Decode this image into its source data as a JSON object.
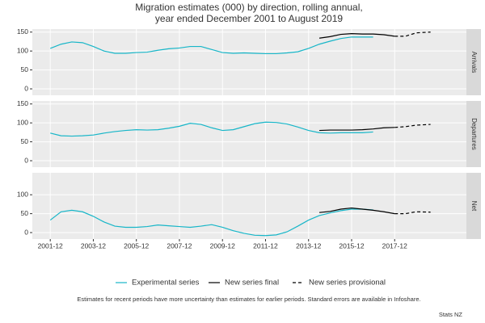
{
  "title": "Migration estimates (000) by direction, rolling annual,",
  "subtitle": "year ended December 2001 to August 2019",
  "caption": "Estimates for recent periods have more uncertainty than estimates for earlier periods. Standard errors are available in Infoshare.",
  "source": "Stats NZ",
  "chart_data": [
    {
      "type": "line",
      "panel": "Arrivals",
      "x": [
        "2001-12",
        "2002-06",
        "2002-12",
        "2003-06",
        "2003-12",
        "2004-06",
        "2004-12",
        "2005-06",
        "2005-12",
        "2006-06",
        "2006-12",
        "2007-06",
        "2007-12",
        "2008-06",
        "2008-12",
        "2009-06",
        "2009-12",
        "2010-06",
        "2010-12",
        "2011-06",
        "2011-12",
        "2012-06",
        "2012-12",
        "2013-06",
        "2013-12",
        "2014-06",
        "2014-12",
        "2015-06",
        "2015-12",
        "2016-06",
        "2016-12",
        "2017-06",
        "2017-12",
        "2018-06",
        "2018-12",
        "2019-08"
      ],
      "xlim": [
        "2001-02",
        "2021-04"
      ],
      "xticks": [
        "2001-12",
        "2003-12",
        "2005-12",
        "2007-12",
        "2009-12",
        "2011-12",
        "2013-12",
        "2015-12",
        "2017-12"
      ],
      "ylim": [
        -17,
        158
      ],
      "yticks": [
        0,
        50,
        100,
        150
      ],
      "grid": true,
      "series": [
        {
          "name": "Experimental series",
          "color": "#17b6c8",
          "dash": false,
          "values": [
            107,
            118,
            124,
            122,
            112,
            100,
            94,
            94,
            96,
            97,
            102,
            106,
            108,
            112,
            112,
            104,
            96,
            94,
            95,
            94,
            93,
            93,
            95,
            98,
            107,
            118,
            126,
            133,
            137,
            137,
            137,
            null,
            null,
            null,
            null,
            null
          ]
        },
        {
          "name": "New series final",
          "color": "#000000",
          "dash": false,
          "values": [
            null,
            null,
            null,
            null,
            null,
            null,
            null,
            null,
            null,
            null,
            null,
            null,
            null,
            null,
            null,
            null,
            null,
            null,
            null,
            null,
            null,
            null,
            null,
            null,
            null,
            134,
            138,
            144,
            146,
            145,
            145,
            143,
            139,
            null,
            null,
            null
          ]
        },
        {
          "name": "New series provisional",
          "color": "#000000",
          "dash": true,
          "values": [
            null,
            null,
            null,
            null,
            null,
            null,
            null,
            null,
            null,
            null,
            null,
            null,
            null,
            null,
            null,
            null,
            null,
            null,
            null,
            null,
            null,
            null,
            null,
            null,
            null,
            null,
            null,
            null,
            null,
            null,
            null,
            null,
            139,
            139,
            148,
            150
          ]
        }
      ]
    },
    {
      "type": "line",
      "panel": "Departures",
      "x": [
        "2001-12",
        "2002-06",
        "2002-12",
        "2003-06",
        "2003-12",
        "2004-06",
        "2004-12",
        "2005-06",
        "2005-12",
        "2006-06",
        "2006-12",
        "2007-06",
        "2007-12",
        "2008-06",
        "2008-12",
        "2009-06",
        "2009-12",
        "2010-06",
        "2010-12",
        "2011-06",
        "2011-12",
        "2012-06",
        "2012-12",
        "2013-06",
        "2013-12",
        "2014-06",
        "2014-12",
        "2015-06",
        "2015-12",
        "2016-06",
        "2016-12",
        "2017-06",
        "2017-12",
        "2018-06",
        "2018-12",
        "2019-08"
      ],
      "xlim": [
        "2001-02",
        "2021-04"
      ],
      "xticks": [
        "2001-12",
        "2003-12",
        "2005-12",
        "2007-12",
        "2009-12",
        "2011-12",
        "2013-12",
        "2015-12",
        "2017-12"
      ],
      "ylim": [
        -17,
        158
      ],
      "yticks": [
        0,
        50,
        100,
        150
      ],
      "grid": true,
      "series": [
        {
          "name": "Experimental series",
          "color": "#17b6c8",
          "dash": false,
          "values": [
            73,
            66,
            65,
            66,
            68,
            73,
            77,
            80,
            82,
            81,
            82,
            86,
            91,
            99,
            96,
            87,
            80,
            82,
            90,
            98,
            102,
            101,
            97,
            89,
            80,
            74,
            73,
            74,
            74,
            74,
            76,
            null,
            null,
            null,
            null,
            null
          ]
        },
        {
          "name": "New series final",
          "color": "#000000",
          "dash": false,
          "values": [
            null,
            null,
            null,
            null,
            null,
            null,
            null,
            null,
            null,
            null,
            null,
            null,
            null,
            null,
            null,
            null,
            null,
            null,
            null,
            null,
            null,
            null,
            null,
            null,
            null,
            80,
            81,
            81,
            81,
            82,
            84,
            87,
            88,
            null,
            null,
            null
          ]
        },
        {
          "name": "New series provisional",
          "color": "#000000",
          "dash": true,
          "values": [
            null,
            null,
            null,
            null,
            null,
            null,
            null,
            null,
            null,
            null,
            null,
            null,
            null,
            null,
            null,
            null,
            null,
            null,
            null,
            null,
            null,
            null,
            null,
            null,
            null,
            null,
            null,
            null,
            null,
            null,
            null,
            null,
            88,
            90,
            94,
            96
          ]
        }
      ]
    },
    {
      "type": "line",
      "panel": "Net",
      "x": [
        "2001-12",
        "2002-06",
        "2002-12",
        "2003-06",
        "2003-12",
        "2004-06",
        "2004-12",
        "2005-06",
        "2005-12",
        "2006-06",
        "2006-12",
        "2007-06",
        "2007-12",
        "2008-06",
        "2008-12",
        "2009-06",
        "2009-12",
        "2010-06",
        "2010-12",
        "2011-06",
        "2011-12",
        "2012-06",
        "2012-12",
        "2013-06",
        "2013-12",
        "2014-06",
        "2014-12",
        "2015-06",
        "2015-12",
        "2016-06",
        "2016-12",
        "2017-06",
        "2017-12",
        "2018-06",
        "2018-12",
        "2019-08"
      ],
      "xlim": [
        "2001-02",
        "2021-04"
      ],
      "xticks": [
        "2001-12",
        "2003-12",
        "2005-12",
        "2007-12",
        "2009-12",
        "2011-12",
        "2013-12",
        "2015-12",
        "2017-12"
      ],
      "ylim": [
        -17,
        158
      ],
      "yticks": [
        0,
        50,
        100
      ],
      "grid": true,
      "series": [
        {
          "name": "Experimental series",
          "color": "#17b6c8",
          "dash": false,
          "values": [
            33,
            55,
            59,
            55,
            43,
            28,
            17,
            14,
            14,
            16,
            20,
            18,
            16,
            14,
            17,
            21,
            14,
            5,
            -2,
            -7,
            -8,
            -6,
            2,
            17,
            33,
            45,
            52,
            58,
            62,
            62,
            60,
            null,
            null,
            null,
            null,
            null
          ]
        },
        {
          "name": "New series final",
          "color": "#000000",
          "dash": false,
          "values": [
            null,
            null,
            null,
            null,
            null,
            null,
            null,
            null,
            null,
            null,
            null,
            null,
            null,
            null,
            null,
            null,
            null,
            null,
            null,
            null,
            null,
            null,
            null,
            null,
            null,
            53,
            56,
            62,
            65,
            62,
            59,
            55,
            50,
            null,
            null,
            null
          ]
        },
        {
          "name": "New series provisional",
          "color": "#000000",
          "dash": true,
          "values": [
            null,
            null,
            null,
            null,
            null,
            null,
            null,
            null,
            null,
            null,
            null,
            null,
            null,
            null,
            null,
            null,
            null,
            null,
            null,
            null,
            null,
            null,
            null,
            null,
            null,
            null,
            null,
            null,
            null,
            null,
            null,
            null,
            50,
            50,
            55,
            54
          ]
        }
      ]
    }
  ]
}
